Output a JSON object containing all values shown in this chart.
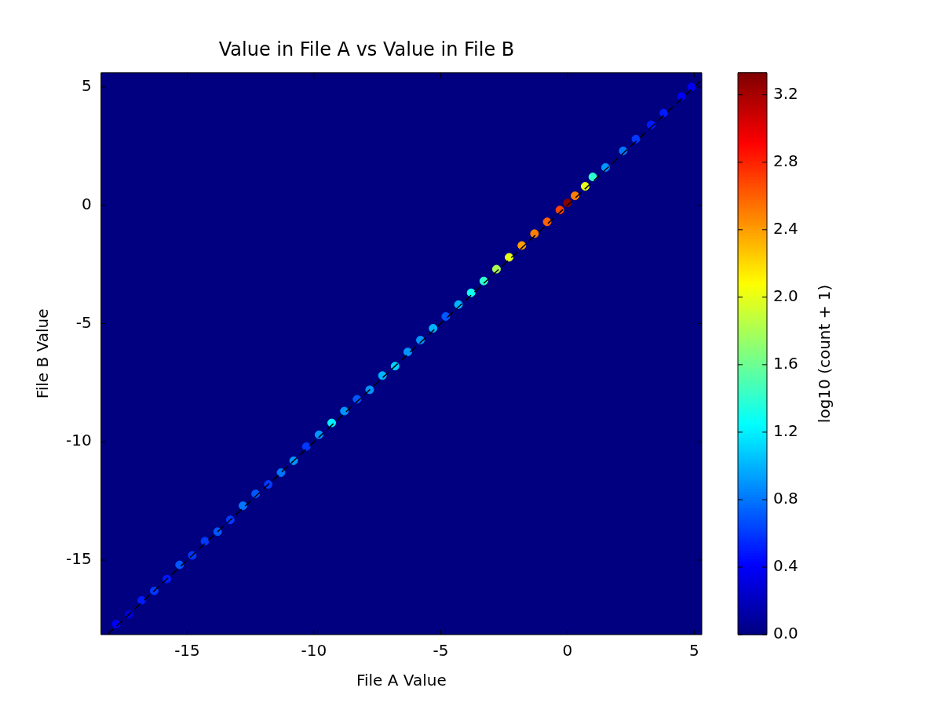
{
  "chart_data": {
    "type": "scatter",
    "title": "Value in File A vs Value in File B",
    "xlabel": "File A Value",
    "ylabel": "File B Value",
    "clabel": "log10 (count + 1)",
    "xlim": [
      -18.4,
      5.3
    ],
    "xticks": [
      -15,
      -10,
      -5,
      0,
      5
    ],
    "ylim": [
      -18.15,
      5.6
    ],
    "yticks": [
      -15,
      -10,
      -5,
      0,
      5
    ],
    "clim": [
      0,
      3.33
    ],
    "cticks": [
      {
        "value": 0,
        "label": "0.0"
      },
      {
        "value": 0.4,
        "label": "0.4"
      },
      {
        "value": 0.8,
        "label": "0.8"
      },
      {
        "value": 1.2,
        "label": "1.2"
      },
      {
        "value": 1.6,
        "label": "1.6"
      },
      {
        "value": 2.0,
        "label": "2.0"
      },
      {
        "value": 2.4,
        "label": "2.4"
      },
      {
        "value": 2.8,
        "label": "2.8"
      },
      {
        "value": 3.2,
        "label": "3.2"
      }
    ],
    "legend": false,
    "marker": "circle",
    "series": [
      {
        "colors": [
          "#0000fa",
          "#0000db",
          "#001aff",
          "#0038ff",
          "#001aff",
          "#0057ff",
          "#0038ff",
          "#0038ff",
          "#0057ff",
          "#0038ff",
          "#0076ff",
          "#0057ff",
          "#0038ff",
          "#0076ff",
          "#0094ff",
          "#0038ff",
          "#0094ff",
          "#00f0ff",
          "#0094ff",
          "#0057ff",
          "#0094ff",
          "#00b3ff",
          "#00d1ff",
          "#0094ff",
          "#0094ff",
          "#00b3ff",
          "#0057ff",
          "#00b3ff",
          "#10ffef",
          "#2effd1",
          "#a9ff56",
          "#e6ff19",
          "#ff9d00",
          "#ff7f00",
          "#ff6000",
          "#ff4200",
          "#890000",
          "#ff7f00",
          "#e6ff19",
          "#2effd1",
          "#0094ff",
          "#0076ff",
          "#0038ff",
          "#001aff",
          "#001aff",
          "#0000fa",
          "#0000fa"
        ],
        "x": [
          -17.8,
          -17.3,
          -16.8,
          -16.3,
          -15.8,
          -15.3,
          -14.8,
          -14.3,
          -13.8,
          -13.3,
          -12.8,
          -12.3,
          -11.8,
          -11.3,
          -10.8,
          -10.3,
          -9.8,
          -9.3,
          -8.8,
          -8.3,
          -7.8,
          -7.3,
          -6.8,
          -6.3,
          -5.8,
          -5.3,
          -4.8,
          -4.3,
          -3.8,
          -3.3,
          -2.8,
          -2.3,
          -1.8,
          -1.3,
          -0.8,
          -0.3,
          0.0,
          0.3,
          0.7,
          1.0,
          1.5,
          2.2,
          2.7,
          3.3,
          3.8,
          4.5,
          4.9
        ],
        "values": [
          -17.7,
          -17.3,
          -16.7,
          -16.3,
          -15.8,
          -15.2,
          -14.8,
          -14.2,
          -13.8,
          -13.3,
          -12.7,
          -12.2,
          -11.8,
          -11.3,
          -10.8,
          -10.2,
          -9.7,
          -9.2,
          -8.7,
          -8.2,
          -7.8,
          -7.2,
          -6.8,
          -6.2,
          -5.7,
          -5.2,
          -4.7,
          -4.2,
          -3.7,
          -3.2,
          -2.7,
          -2.2,
          -1.7,
          -1.2,
          -0.7,
          -0.2,
          0.1,
          0.4,
          0.8,
          1.2,
          1.6,
          2.3,
          2.8,
          3.4,
          3.9,
          4.6,
          5.0
        ],
        "cvalues": [
          0.4,
          0.3,
          0.5,
          0.6,
          0.5,
          0.7,
          0.6,
          0.6,
          0.7,
          0.6,
          0.8,
          0.7,
          0.6,
          0.8,
          0.9,
          0.6,
          0.9,
          1.2,
          0.9,
          0.7,
          0.9,
          1.0,
          1.1,
          0.9,
          0.9,
          1.0,
          0.7,
          1.0,
          1.3,
          1.4,
          1.8,
          2.0,
          2.4,
          2.5,
          2.6,
          2.7,
          3.3,
          2.5,
          2.0,
          1.4,
          0.9,
          0.8,
          0.6,
          0.5,
          0.5,
          0.4,
          0.4
        ]
      },
      {
        "type": "line",
        "color": "#000000",
        "line_style": "dashed",
        "marker": "none",
        "x": [
          -18.15,
          5.3
        ],
        "values": [
          -18.15,
          5.3
        ]
      }
    ]
  }
}
